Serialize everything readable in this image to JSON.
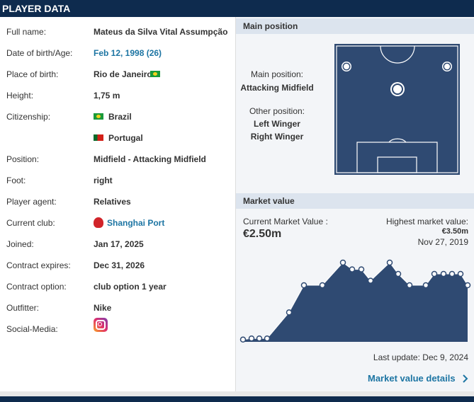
{
  "header": {
    "title": "PLAYER DATA"
  },
  "player_data": {
    "full_name": {
      "label": "Full name:",
      "value": "Mateus da Silva Vital Assumpção"
    },
    "birth": {
      "label": "Date of birth/Age:",
      "value": "Feb 12, 1998 (26)"
    },
    "place": {
      "label": "Place of birth:",
      "value": "Rio de Janeiro"
    },
    "height": {
      "label": "Height:",
      "value": "1,75 m"
    },
    "citizenship": {
      "label": "Citizenship:",
      "values": [
        "Brazil",
        "Portugal"
      ]
    },
    "position": {
      "label": "Position:",
      "value": "Midfield - Attacking Midfield"
    },
    "foot": {
      "label": "Foot:",
      "value": "right"
    },
    "agent": {
      "label": "Player agent:",
      "value": "Relatives"
    },
    "club": {
      "label": "Current club:",
      "value": "Shanghai Port"
    },
    "joined": {
      "label": "Joined:",
      "value": "Jan 17, 2025"
    },
    "contract": {
      "label": "Contract expires:",
      "value": "Dec 31, 2026"
    },
    "option": {
      "label": "Contract option:",
      "value": "club option 1 year"
    },
    "outfitter": {
      "label": "Outfitter:",
      "value": "Nike"
    },
    "social": {
      "label": "Social-Media:"
    }
  },
  "position_box": {
    "title": "Main position",
    "main_label": "Main position:",
    "main": "Attacking Midfield",
    "other_label": "Other position:",
    "others": [
      "Left Winger",
      "Right Winger"
    ]
  },
  "market_value": {
    "title": "Market value",
    "current_label": "Current Market Value :",
    "current": "€2.50m",
    "highest_label": "Highest market value:",
    "highest": "€3.50m",
    "highest_date": "Nov 27, 2019",
    "last_update": "Last update: Dec 9, 2024",
    "details": "Market value details",
    "chart": {
      "type": "area",
      "values": [
        0.1,
        0.15,
        0.15,
        0.15,
        1.3,
        2.5,
        2.5,
        3.5,
        3.2,
        3.2,
        2.7,
        3.5,
        3.0,
        2.5,
        2.5,
        3.0,
        3.0,
        3.0,
        3.0,
        2.5
      ],
      "color": "#2f4a72"
    }
  }
}
